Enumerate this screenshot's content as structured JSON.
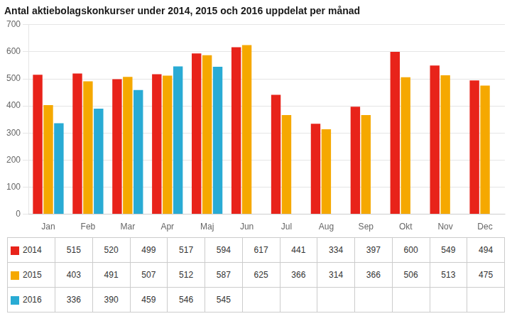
{
  "chart_data": {
    "type": "bar",
    "title": "Antal aktiebolagskonkurser under 2014, 2015 och 2016 uppdelat per månad",
    "categories": [
      "Jan",
      "Feb",
      "Mar",
      "Apr",
      "Maj",
      "Jun",
      "Jul",
      "Aug",
      "Sep",
      "Okt",
      "Nov",
      "Dec"
    ],
    "series": [
      {
        "name": "2014",
        "color": "#E8231A",
        "values": [
          515,
          520,
          499,
          517,
          594,
          617,
          441,
          334,
          397,
          600,
          549,
          494
        ]
      },
      {
        "name": "2015",
        "color": "#F5A800",
        "values": [
          403,
          491,
          507,
          512,
          587,
          625,
          366,
          314,
          366,
          506,
          513,
          475
        ]
      },
      {
        "name": "2016",
        "color": "#29ABD4",
        "values": [
          336,
          390,
          459,
          546,
          545,
          null,
          null,
          null,
          null,
          null,
          null,
          null
        ]
      }
    ],
    "ylim": [
      0,
      700
    ],
    "yticks": [
      0,
      100,
      200,
      300,
      400,
      500,
      600,
      700
    ],
    "grid": true,
    "legend": "bottom"
  }
}
